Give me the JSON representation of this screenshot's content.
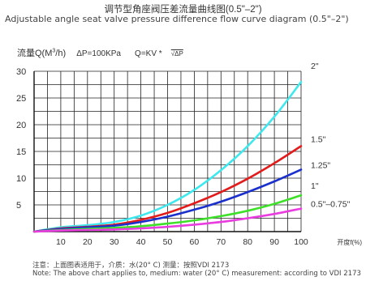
{
  "title_cn": "调节型角座阀压差流量曲线图(0.5\"–2\")",
  "title_en": "Adjustable angle seat valve pressure difference flow curve diagram (0.5\"–2\")",
  "formula": {
    "ylabel_prefix": "流量Q(M",
    "ylabel_sup": "3",
    "ylabel_suffix": "/h)",
    "dp": "ΔP=100KPa",
    "q": "Q=KV *",
    "sqrt": "√ΔP"
  },
  "note_cn": "注意：上面图表适用于，介质：水(20° C) 测量：按照VDI 2173",
  "note_en": "Note: The above chart applies to, medium: water (20° C) measurement: according to VDI 2173",
  "chart_data": {
    "type": "line",
    "xlabel": "开度f(%)",
    "ylabel": "流量Q(M3/h)",
    "xlim": [
      0,
      100
    ],
    "ylim": [
      0,
      30
    ],
    "x_ticks": [
      10,
      20,
      30,
      40,
      50,
      60,
      70,
      80,
      90,
      100
    ],
    "y_ticks": [
      5,
      10,
      15,
      20,
      25,
      30
    ],
    "grid": true,
    "x": [
      0,
      10,
      20,
      30,
      40,
      50,
      60,
      70,
      80,
      90,
      100
    ],
    "series": [
      {
        "name": "2\"",
        "color": "#3ee8ee",
        "values": [
          0,
          0.8,
          1.2,
          1.8,
          3.0,
          5.0,
          7.8,
          11.5,
          16.0,
          21.5,
          28.0
        ]
      },
      {
        "name": "1.5\"",
        "color": "#e21b1b",
        "values": [
          0,
          0.6,
          0.9,
          1.3,
          2.2,
          3.5,
          5.3,
          7.4,
          9.9,
          12.8,
          16.0
        ]
      },
      {
        "name": "1.25\"",
        "color": "#1a2fcc",
        "values": [
          0,
          0.5,
          0.8,
          1.1,
          1.8,
          2.8,
          4.1,
          5.6,
          7.4,
          9.4,
          11.6
        ]
      },
      {
        "name": "1\"",
        "color": "#3ee02a",
        "values": [
          0,
          0.3,
          0.5,
          0.7,
          1.0,
          1.5,
          2.1,
          2.9,
          3.9,
          5.2,
          6.8
        ]
      },
      {
        "name": "0.5\"–0.75\"",
        "color": "#e93de0",
        "values": [
          0,
          0.2,
          0.3,
          0.4,
          0.6,
          0.9,
          1.3,
          1.8,
          2.5,
          3.3,
          4.3
        ]
      }
    ]
  }
}
